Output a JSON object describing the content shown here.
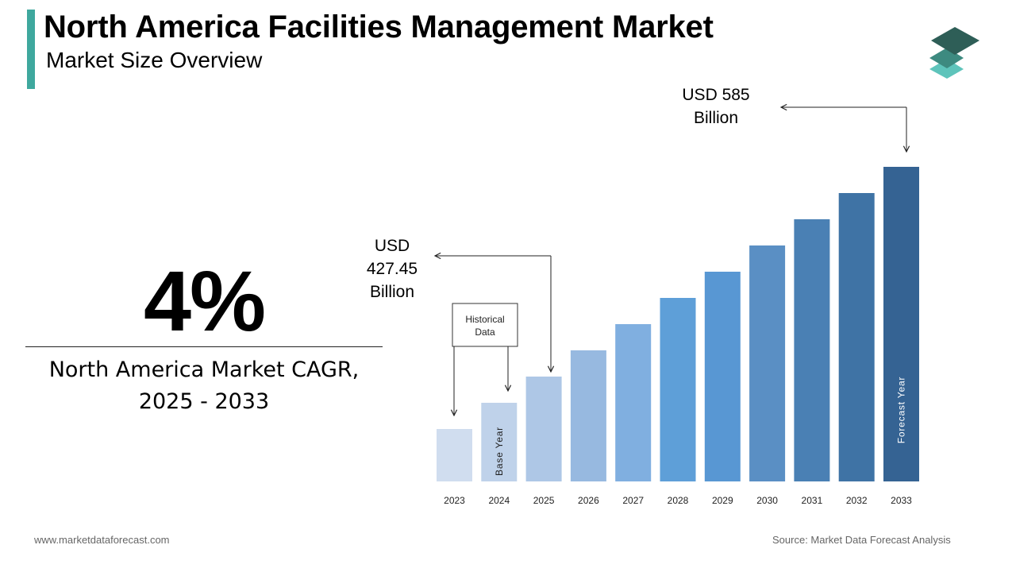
{
  "header": {
    "title": "North America Facilities Management Market",
    "subtitle": "Market Size Overview"
  },
  "cagr": {
    "value": "4%",
    "caption_line1": "North America Market CAGR,",
    "caption_line2": "2025 - 2033"
  },
  "annotations": {
    "start_value": [
      "USD",
      "427.45",
      "Billion"
    ],
    "end_value": [
      "USD 585",
      "Billion"
    ],
    "historical_box": [
      "Historical",
      "Data"
    ],
    "base_year_label": "Base Year",
    "forecast_year_label": "Forecast Year"
  },
  "footer": {
    "website": "www.marketdataforecast.com",
    "source": "Source: Market Data Forecast Analysis"
  },
  "colors": {
    "accent": "#3fa89e",
    "logo_top": "#2e5e57",
    "logo_mid": "#3d8a80",
    "logo_bottom": "#5ec4bb"
  },
  "chart_data": {
    "type": "bar",
    "categories": [
      "2023",
      "2024",
      "2025",
      "2026",
      "2027",
      "2028",
      "2029",
      "2030",
      "2031",
      "2032",
      "2033"
    ],
    "values": [
      1,
      2,
      3,
      4,
      5,
      6,
      7,
      8,
      9,
      10,
      11
    ],
    "value_note": "Relative bar heights only; the chart shows no value axis",
    "colors": [
      "#d0ddef",
      "#bfd2ea",
      "#aec7e6",
      "#97b9e0",
      "#80afe0",
      "#5e9fd8",
      "#5897d3",
      "#5a8fc4",
      "#4a80b4",
      "#3f73a5",
      "#356393"
    ],
    "grid": false,
    "legend": "none"
  }
}
